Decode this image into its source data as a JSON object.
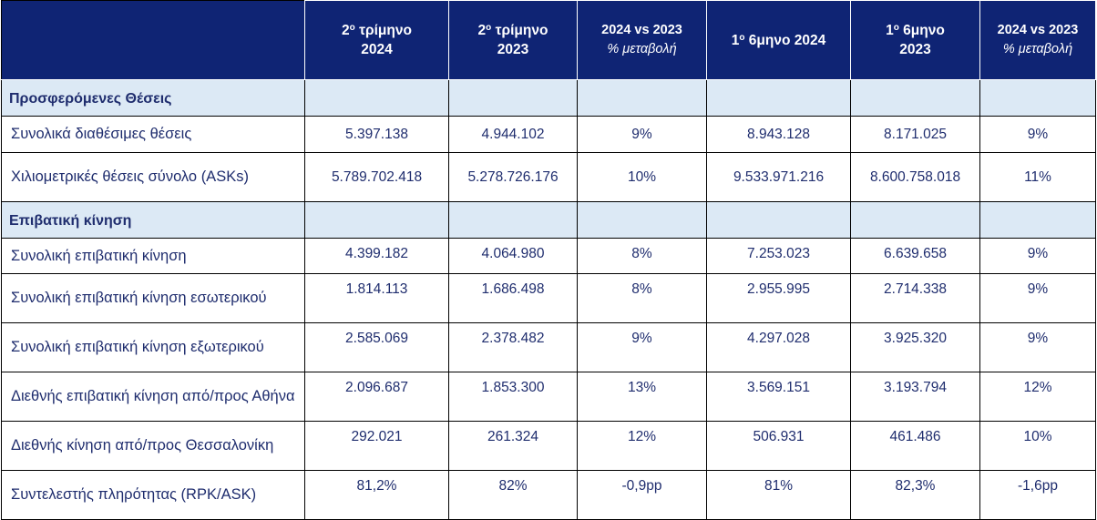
{
  "header": {
    "col1": {
      "line1a": "2",
      "sup": "ο",
      "line1b": " τρίμηνο",
      "line2": "2024"
    },
    "col2": {
      "line1a": "2",
      "sup": "ο",
      "line1b": " τρίμηνο",
      "line2": "2023"
    },
    "col3": {
      "line1": "2024 vs 2023",
      "line2": "% μεταβολή"
    },
    "col4": {
      "line1a": "1",
      "sup": "ο",
      "line1b": "  6μηνο 2024"
    },
    "col5": {
      "line1a": "1",
      "sup": "ο",
      "line1b": "  6μηνο",
      "line2": "2023"
    },
    "col6": {
      "line1": "2024 vs 2023",
      "line2": "% μεταβολή"
    }
  },
  "sections": [
    {
      "title": "Προσφερόμενες Θέσεις",
      "rows": [
        {
          "label": "Συνολικά διαθέσιμες θέσεις",
          "values": [
            "5.397.138",
            "4.944.102",
            "9%",
            "8.943.128",
            "8.171.025",
            "9%"
          ]
        },
        {
          "label": "Χιλιομετρικές θέσεις σύνολο (ASKs)",
          "values": [
            "5.789.702.418",
            "5.278.726.176",
            "10%",
            "9.533.971.216",
            "8.600.758.018",
            "11%"
          ]
        }
      ]
    },
    {
      "title": "Επιβατική κίνηση",
      "rows": [
        {
          "label": "Συνολική επιβατική κίνηση",
          "values": [
            "4.399.182",
            "4.064.980",
            "8%",
            "7.253.023",
            "6.639.658",
            "9%"
          ]
        },
        {
          "label": "Συνολική επιβατική κίνηση εσωτερικού",
          "values": [
            "1.814.113",
            "1.686.498",
            "8%",
            "2.955.995",
            "2.714.338",
            "9%"
          ]
        },
        {
          "label": "Συνολική επιβατική κίνηση εξωτερικού",
          "values": [
            "2.585.069",
            "2.378.482",
            "9%",
            "4.297.028",
            "3.925.320",
            "9%"
          ]
        },
        {
          "label": "Διεθνής επιβατική κίνηση από/προς Αθήνα",
          "values": [
            "2.096.687",
            "1.853.300",
            "13%",
            "3.569.151",
            "3.193.794",
            "12%"
          ]
        },
        {
          "label": "Διεθνής κίνηση  από/προς Θεσσαλονίκη",
          "values": [
            "292.021",
            "261.324",
            "12%",
            "506.931",
            "461.486",
            "10%"
          ]
        },
        {
          "label": "Συντελεστής πληρότητας (RPK/ASK)",
          "values": [
            "81,2%",
            "82%",
            "-0,9pp",
            "81%",
            "82,3%",
            "-1,6pp"
          ]
        }
      ]
    }
  ],
  "colors": {
    "header_bg": "#0f2474",
    "section_bg": "#dce9f5",
    "text": "#1f2d6e"
  }
}
